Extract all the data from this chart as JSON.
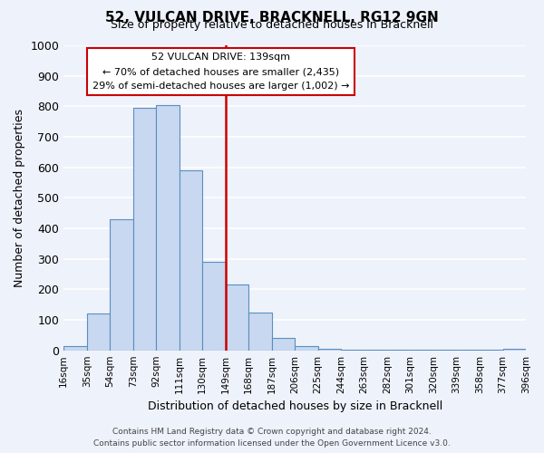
{
  "title": "52, VULCAN DRIVE, BRACKNELL, RG12 9GN",
  "subtitle": "Size of property relative to detached houses in Bracknell",
  "xlabel": "Distribution of detached houses by size in Bracknell",
  "ylabel": "Number of detached properties",
  "bin_labels": [
    "16sqm",
    "35sqm",
    "54sqm",
    "73sqm",
    "92sqm",
    "111sqm",
    "130sqm",
    "149sqm",
    "168sqm",
    "187sqm",
    "206sqm",
    "225sqm",
    "244sqm",
    "263sqm",
    "282sqm",
    "301sqm",
    "320sqm",
    "339sqm",
    "358sqm",
    "377sqm",
    "396sqm"
  ],
  "bar_values": [
    15,
    120,
    430,
    795,
    805,
    590,
    290,
    215,
    125,
    40,
    15,
    5,
    3,
    2,
    2,
    1,
    1,
    1,
    1,
    5
  ],
  "bar_color": "#c8d8f0",
  "bar_edge_color": "#5a8fc0",
  "vline_x": 7.0,
  "vline_color": "#cc0000",
  "ylim": [
    0,
    1000
  ],
  "yticks": [
    0,
    100,
    200,
    300,
    400,
    500,
    600,
    700,
    800,
    900,
    1000
  ],
  "annotation_title": "52 VULCAN DRIVE: 139sqm",
  "annotation_line1": "← 70% of detached houses are smaller (2,435)",
  "annotation_line2": "29% of semi-detached houses are larger (1,002) →",
  "annotation_box_color": "#ffffff",
  "annotation_box_edge": "#cc0000",
  "footer_line1": "Contains HM Land Registry data © Crown copyright and database right 2024.",
  "footer_line2": "Contains public sector information licensed under the Open Government Licence v3.0.",
  "bg_color": "#eef2fb",
  "grid_color": "#ffffff"
}
